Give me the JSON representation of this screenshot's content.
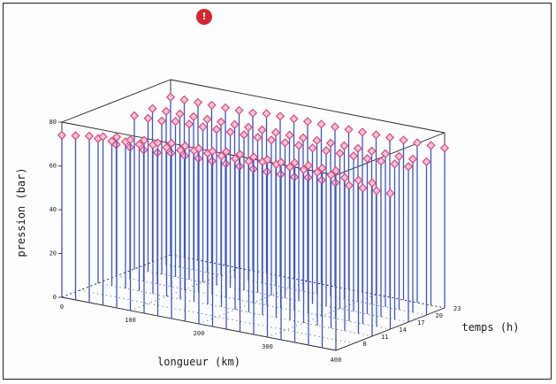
{
  "badge": {
    "text": "!",
    "color": "#d8262e"
  },
  "colors": {
    "stem": "#3b55cf",
    "marker": "#e0457a",
    "marker_fill": "#f4c6d6",
    "frame": "#222222"
  },
  "chart_data": {
    "type": "3d-stem",
    "title": "",
    "xlabel": "longueur (km)",
    "ylabel": "temps (h)",
    "zlabel": "pression (bar)",
    "xlim": [
      0,
      400
    ],
    "ylim": [
      5,
      23
    ],
    "zlim": [
      0,
      80
    ],
    "x_ticks": [
      "0",
      "100",
      "200",
      "300",
      "400"
    ],
    "y_ticks": [
      "8",
      "11",
      "14",
      "17",
      "20",
      "23"
    ],
    "z_ticks": [
      "0",
      "20",
      "40",
      "60",
      "80"
    ],
    "grid": true,
    "series": [
      {
        "y": 5,
        "x": [
          0,
          20,
          40,
          60,
          80,
          100,
          120,
          140,
          160,
          180,
          200,
          220,
          240,
          260,
          280,
          300,
          320,
          340,
          360,
          380,
          400
        ],
        "values": [
          74,
          75,
          76,
          77,
          78,
          78,
          79,
          79,
          80,
          80,
          80,
          80,
          81,
          81,
          81,
          81,
          81,
          82,
          82,
          82,
          82
        ]
      },
      {
        "y": 11,
        "x": [
          0,
          20,
          40,
          60,
          80,
          100,
          120,
          140,
          160,
          180,
          200,
          220,
          240,
          260,
          280,
          300,
          320,
          340,
          360,
          380,
          400
        ],
        "values": [
          66,
          66,
          67,
          67,
          68,
          68,
          68,
          69,
          69,
          69,
          69,
          69,
          70,
          70,
          70,
          70,
          70,
          70,
          70,
          70,
          70
        ]
      },
      {
        "y": 14,
        "x": [
          0,
          20,
          40,
          60,
          80,
          100,
          120,
          140,
          160,
          180,
          200,
          220,
          240,
          260,
          280,
          300,
          320,
          340,
          360,
          380,
          400
        ],
        "values": [
          60,
          60,
          60,
          60,
          61,
          61,
          61,
          61,
          61,
          61,
          61,
          61,
          61,
          61,
          62,
          62,
          62,
          62,
          62,
          62,
          62
        ]
      },
      {
        "y": 17,
        "x": [
          0,
          20,
          40,
          60,
          80,
          100,
          120,
          140,
          160,
          180,
          200,
          220,
          240,
          260,
          280,
          300,
          320,
          340,
          360,
          380,
          400
        ],
        "values": [
          70,
          70,
          70,
          71,
          71,
          71,
          71,
          71,
          71,
          71,
          71,
          71,
          71,
          71,
          71,
          71,
          71,
          71,
          71,
          71,
          71
        ]
      },
      {
        "y": 20,
        "x": [
          0,
          20,
          40,
          60,
          80,
          100,
          120,
          140,
          160,
          180,
          200,
          220,
          240,
          260,
          280,
          300,
          320,
          340,
          360,
          380,
          400
        ],
        "values": [
          70,
          70,
          70,
          70,
          70,
          70,
          70,
          70,
          70,
          70,
          70,
          70,
          70,
          70,
          70,
          70,
          70,
          70,
          70,
          70,
          70
        ]
      },
      {
        "y": 23,
        "x": [
          0,
          20,
          40,
          60,
          80,
          100,
          120,
          140,
          160,
          180,
          200,
          220,
          240,
          260,
          280,
          300,
          320,
          340,
          360,
          380,
          400
        ],
        "values": [
          72,
          72,
          72,
          72,
          72,
          72,
          72,
          73,
          73,
          73,
          73,
          73,
          73,
          73,
          73,
          73,
          73,
          73,
          73,
          73,
          73
        ]
      }
    ]
  }
}
